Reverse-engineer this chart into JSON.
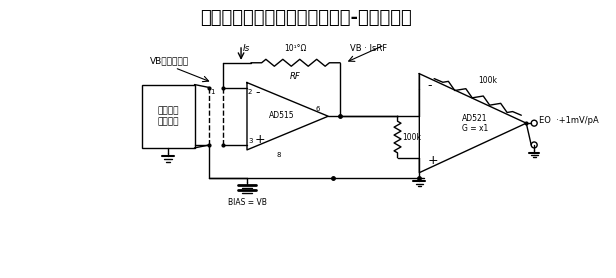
{
  "title": "具有接地的偏压和传感器的电流-电压变换器",
  "title_fontsize": 13,
  "bg_color": "#ffffff",
  "line_color": "#000000",
  "label_vb_here": "VB出现在这里",
  "label_sensor": "传感器或\n被测部件",
  "label_is": "Is",
  "label_rf_ohm": "10¹°Ω",
  "label_rf": "RF",
  "label_vb_eq": "VB · IsRF",
  "label_ad515": "AD515",
  "label_ad521": "AD521\nG = x1",
  "label_100k": "100k",
  "label_bias": "BIAS = VB",
  "label_eo": "EO  ·+1mV/pA",
  "node2": "2",
  "node3": "3",
  "node6": "6",
  "node8": "8"
}
